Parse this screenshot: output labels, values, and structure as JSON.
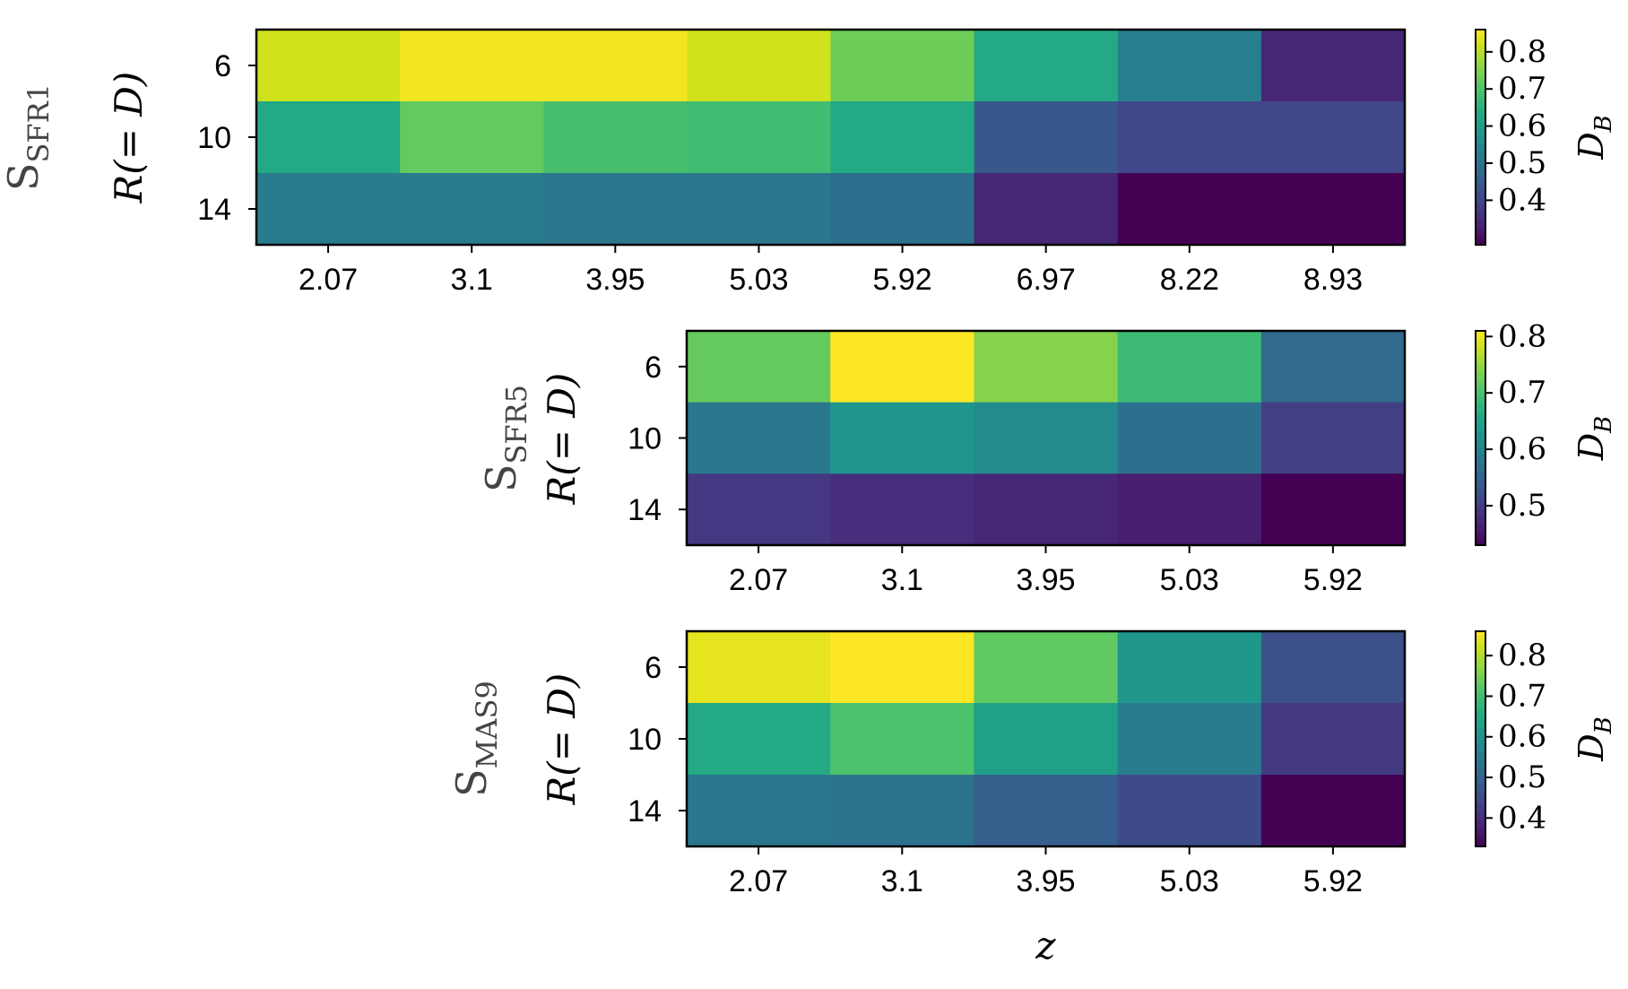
{
  "chart_data": [
    {
      "type": "heatmap",
      "dataset_label_main": "S",
      "dataset_label_sub": "SFR1",
      "ylabel": "R(= D)",
      "xlabel": "",
      "x_tick_labels": [
        "2.07",
        "3.1",
        "3.95",
        "5.03",
        "5.92",
        "6.97",
        "8.22",
        "8.93"
      ],
      "y_tick_labels": [
        "6",
        "10",
        "14"
      ],
      "values": [
        [
          0.82,
          0.85,
          0.85,
          0.82,
          0.73,
          0.63,
          0.53,
          0.34
        ],
        [
          0.63,
          0.72,
          0.69,
          0.68,
          0.63,
          0.44,
          0.4,
          0.4
        ],
        [
          0.52,
          0.52,
          0.51,
          0.51,
          0.49,
          0.34,
          0.28,
          0.28
        ]
      ],
      "vmin": 0.28,
      "vmax": 0.86,
      "colorbar_label": "D_B",
      "colorbar_ticks": [
        "0.4",
        "0.5",
        "0.6",
        "0.7",
        "0.8"
      ]
    },
    {
      "type": "heatmap",
      "dataset_label_main": "S",
      "dataset_label_sub": "SFR5",
      "ylabel": "R(= D)",
      "xlabel": "",
      "x_tick_labels": [
        "2.07",
        "3.1",
        "3.95",
        "5.03",
        "5.92"
      ],
      "y_tick_labels": [
        "6",
        "10",
        "14"
      ],
      "values": [
        [
          0.72,
          0.81,
          0.74,
          0.69,
          0.56
        ],
        [
          0.58,
          0.63,
          0.61,
          0.57,
          0.5
        ],
        [
          0.49,
          0.48,
          0.47,
          0.46,
          0.43
        ]
      ],
      "vmin": 0.43,
      "vmax": 0.81,
      "colorbar_label": "D_B",
      "colorbar_ticks": [
        "0.5",
        "0.6",
        "0.7",
        "0.8"
      ]
    },
    {
      "type": "heatmap",
      "dataset_label_main": "S",
      "dataset_label_sub": "MAS9",
      "ylabel": "R(= D)",
      "xlabel": "z",
      "x_tick_labels": [
        "2.07",
        "3.1",
        "3.95",
        "5.03",
        "5.92"
      ],
      "y_tick_labels": [
        "6",
        "10",
        "14"
      ],
      "values": [
        [
          0.84,
          0.86,
          0.73,
          0.61,
          0.46
        ],
        [
          0.65,
          0.71,
          0.63,
          0.55,
          0.42
        ],
        [
          0.54,
          0.53,
          0.49,
          0.45,
          0.33
        ]
      ],
      "vmin": 0.33,
      "vmax": 0.86,
      "colorbar_label": "D_B",
      "colorbar_ticks": [
        "0.4",
        "0.5",
        "0.6",
        "0.7",
        "0.8"
      ]
    }
  ]
}
